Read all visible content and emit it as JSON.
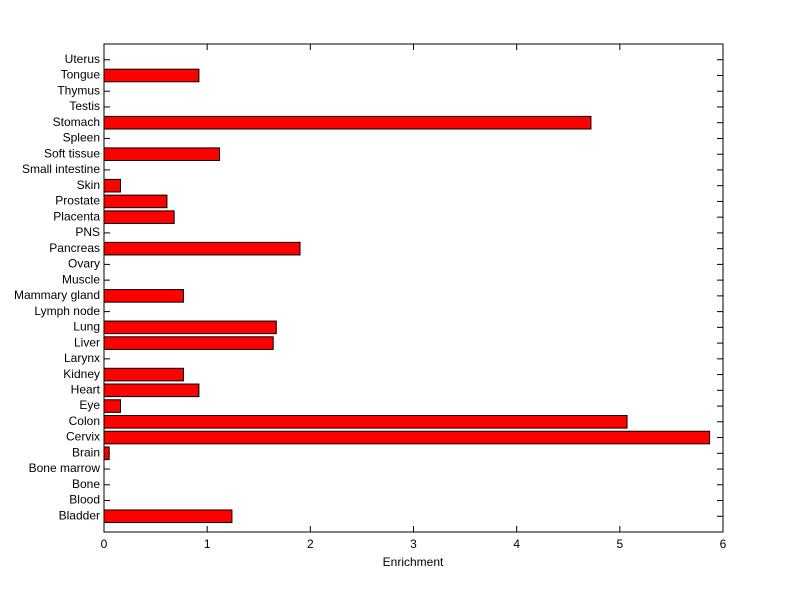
{
  "chart_data": {
    "type": "barh",
    "xlabel": "Enrichment",
    "categories": [
      "Bladder",
      "Blood",
      "Bone",
      "Bone marrow",
      "Brain",
      "Cervix",
      "Colon",
      "Eye",
      "Heart",
      "Kidney",
      "Larynx",
      "Liver",
      "Lung",
      "Lymph node",
      "Mammary gland",
      "Muscle",
      "Ovary",
      "Pancreas",
      "PNS",
      "Placenta",
      "Prostate",
      "Skin",
      "Small intestine",
      "Soft tissue",
      "Spleen",
      "Stomach",
      "Testis",
      "Thymus",
      "Tongue",
      "Uterus"
    ],
    "values": [
      1.24,
      0,
      0,
      0,
      0.05,
      5.87,
      5.07,
      0.16,
      0.92,
      0.77,
      0,
      1.64,
      1.67,
      0,
      0.77,
      0,
      0,
      1.9,
      0,
      0.68,
      0.61,
      0.16,
      0,
      1.12,
      0,
      4.72,
      0,
      0,
      0.92,
      0
    ],
    "color": "#ff0000",
    "xlim": [
      0,
      6
    ],
    "xticks": [
      0,
      1,
      2,
      3,
      4,
      5,
      6
    ],
    "grid": false
  }
}
